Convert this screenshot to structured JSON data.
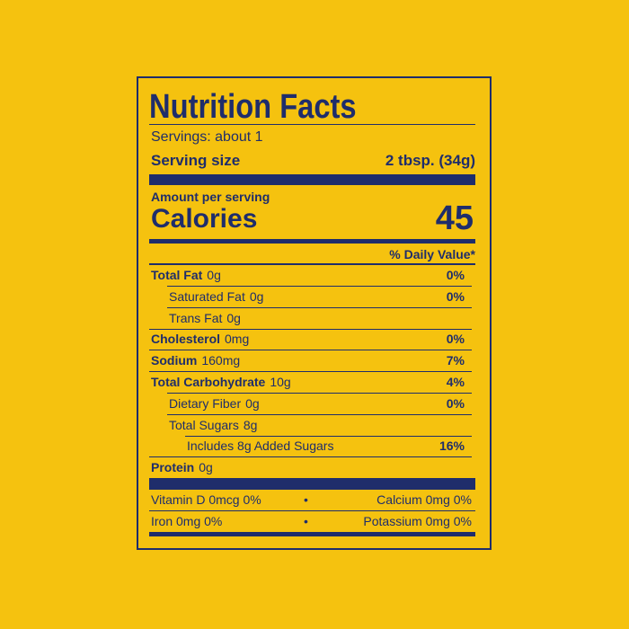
{
  "label": {
    "title": "Nutrition Facts",
    "servings": "Servings: about 1",
    "serving_size": {
      "label": "Serving size",
      "value": "2 tbsp. (34g)"
    },
    "amount_per_serving": "Amount per serving",
    "calories": {
      "label": "Calories",
      "value": "45"
    },
    "daily_value_header": "% Daily Value*",
    "rows": [
      {
        "name": "Total Fat",
        "amount": "0g",
        "dv": "0%"
      },
      {
        "name": "Saturated Fat",
        "amount": "0g",
        "dv": "0%"
      },
      {
        "name": "Trans Fat",
        "amount": "0g"
      },
      {
        "name": "Cholesterol",
        "amount": "0mg",
        "dv": "0%"
      },
      {
        "name": "Sodium",
        "amount": "160mg",
        "dv": "7%"
      },
      {
        "name": "Total Carbohydrate",
        "amount": "10g",
        "dv": "4%"
      },
      {
        "name": "Dietary Fiber",
        "amount": "0g",
        "dv": "0%"
      },
      {
        "name": "Total Sugars",
        "amount": "8g"
      },
      {
        "name": "Includes 8g Added Sugars",
        "dv": "16%"
      },
      {
        "name": "Protein",
        "amount": "0g"
      }
    ],
    "vitamins": [
      [
        "Vitamin D 0mcg 0%",
        "Calcium 0mg 0%"
      ],
      [
        "Iron 0mg 0%",
        "Potassium 0mg 0%"
      ]
    ]
  }
}
